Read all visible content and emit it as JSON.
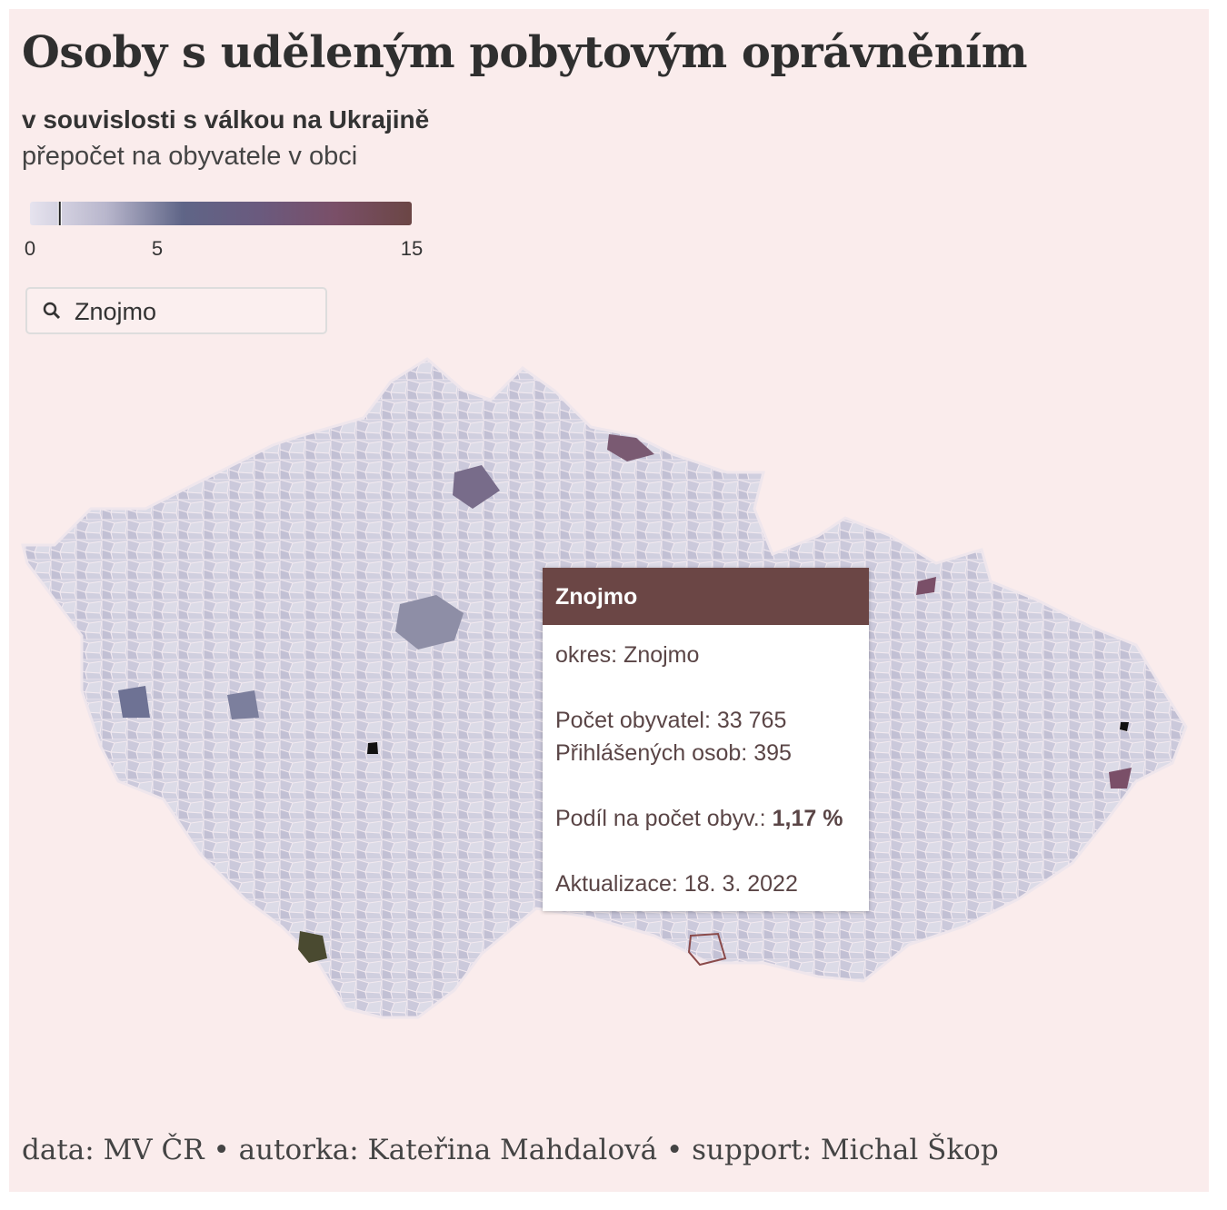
{
  "header": {
    "title": "Osoby s uděleným pobytovým oprávněním",
    "subtitle": "v souvislosti s válkou na Ukrajině",
    "description": "přepočet na obyvatele v obci"
  },
  "legend": {
    "range": [
      0,
      15
    ],
    "ticks": [
      0,
      5,
      15
    ],
    "colors": [
      "#e6e3ee",
      "#b8b6cc",
      "#5f6587",
      "#6a5a7e",
      "#7a4f68",
      "#6b4645"
    ]
  },
  "search": {
    "value": "Znojmo"
  },
  "tooltip": {
    "title": "Znojmo",
    "district_label": "okres:",
    "district": "Znojmo",
    "population_label": "Počet obyvatel:",
    "population": {
      "value": 33765,
      "label": "33 765"
    },
    "registered_label": "Přihlášených osob:",
    "registered": 395,
    "share_label": "Podíl na počet obyv.:",
    "share": {
      "value": 1.17,
      "label": "1,17 %"
    },
    "updated_label": "Aktualizace:",
    "updated": "18. 3. 2022"
  },
  "footer": "data: MV ČR • autorka: Kateřina Mahdalová • support: Michal Škop"
}
